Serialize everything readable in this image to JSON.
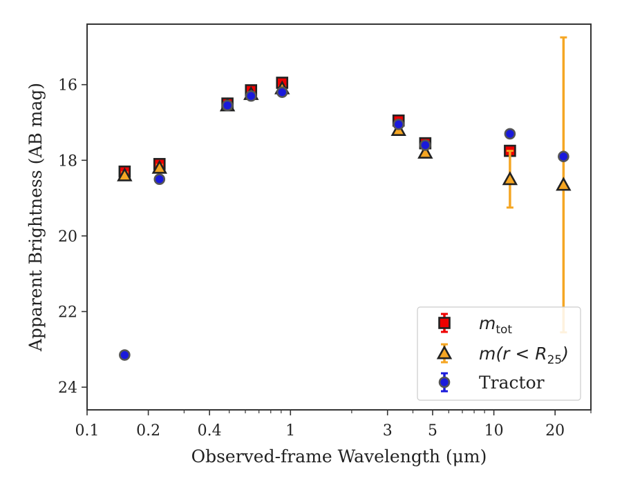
{
  "colors": {
    "mtot": "#ee0000",
    "mr25": "#f5a623",
    "mr25_err": "#f5a623",
    "tractor": "#1a1adb",
    "tractor_edge": "#555555",
    "edge": "#222222"
  },
  "chart_data": {
    "type": "scatter",
    "xlabel": "Observed-frame Wavelength (μm)",
    "ylabel": "Apparent Brightness (AB mag)",
    "xscale": "log",
    "xlim": [
      0.1,
      30
    ],
    "ylim": [
      24.6,
      14.4
    ],
    "y_inverted": true,
    "x_ticks": [
      {
        "value": 0.1,
        "label": "0.1"
      },
      {
        "value": 0.2,
        "label": "0.2"
      },
      {
        "value": 0.4,
        "label": "0.4"
      },
      {
        "value": 1,
        "label": "1"
      },
      {
        "value": 3,
        "label": "3"
      },
      {
        "value": 5,
        "label": "5"
      },
      {
        "value": 10,
        "label": "10"
      },
      {
        "value": 20,
        "label": "20"
      }
    ],
    "x_minor_ticks": [
      0.3,
      0.5,
      0.6,
      0.7,
      0.8,
      0.9,
      2,
      4,
      6,
      7,
      8,
      9,
      30
    ],
    "y_ticks": [
      {
        "value": 16,
        "label": "16"
      },
      {
        "value": 18,
        "label": "18"
      },
      {
        "value": 20,
        "label": "20"
      },
      {
        "value": 22,
        "label": "22"
      },
      {
        "value": 24,
        "label": "24"
      }
    ],
    "grid": false,
    "legend_position": "lower right",
    "legend": [
      {
        "key": "mtot",
        "main": "m",
        "sub": "tot",
        "suffix": "",
        "marker": "square"
      },
      {
        "key": "mr25",
        "main": "m(r < R",
        "sub": "25",
        "suffix": ")",
        "marker": "triangle"
      },
      {
        "key": "tractor",
        "main": "Tractor",
        "sub": "",
        "suffix": "",
        "marker": "circle"
      }
    ],
    "series": [
      {
        "name": "m_tot",
        "key": "mtot",
        "marker": "square",
        "points": [
          {
            "x": 0.153,
            "y": 18.3,
            "err": 0.08
          },
          {
            "x": 0.227,
            "y": 18.1,
            "err": 0.08
          },
          {
            "x": 0.49,
            "y": 16.5,
            "err": 0.05
          },
          {
            "x": 0.64,
            "y": 16.15,
            "err": 0.05
          },
          {
            "x": 0.91,
            "y": 15.95,
            "err": 0.05
          },
          {
            "x": 3.4,
            "y": 16.95,
            "err": 0.05
          },
          {
            "x": 4.6,
            "y": 17.55,
            "err": 0.05
          },
          {
            "x": 12.0,
            "y": 17.75,
            "err": 0.05
          }
        ]
      },
      {
        "name": "m(r < R25)",
        "key": "mr25",
        "marker": "triangle",
        "points": [
          {
            "x": 0.153,
            "y": 18.4,
            "err": 0.08
          },
          {
            "x": 0.227,
            "y": 18.2,
            "err": 0.08
          },
          {
            "x": 0.49,
            "y": 16.55,
            "err": 0.05
          },
          {
            "x": 0.64,
            "y": 16.25,
            "err": 0.05
          },
          {
            "x": 0.91,
            "y": 16.1,
            "err": 0.05
          },
          {
            "x": 3.4,
            "y": 17.2,
            "err": 0.05
          },
          {
            "x": 4.6,
            "y": 17.8,
            "err": 0.05
          },
          {
            "x": 12.0,
            "y": 18.5,
            "err": 0.75
          },
          {
            "x": 22.0,
            "y": 18.65,
            "err": 3.9
          }
        ]
      },
      {
        "name": "Tractor",
        "key": "tractor",
        "marker": "circle",
        "points": [
          {
            "x": 0.153,
            "y": 23.15,
            "err": 0.05
          },
          {
            "x": 0.227,
            "y": 18.5,
            "err": 0.05
          },
          {
            "x": 0.49,
            "y": 16.55,
            "err": 0.03
          },
          {
            "x": 0.64,
            "y": 16.3,
            "err": 0.03
          },
          {
            "x": 0.91,
            "y": 16.2,
            "err": 0.03
          },
          {
            "x": 3.4,
            "y": 17.05,
            "err": 0.03
          },
          {
            "x": 4.6,
            "y": 17.6,
            "err": 0.03
          },
          {
            "x": 12.0,
            "y": 17.3,
            "err": 0.05
          },
          {
            "x": 22.0,
            "y": 17.9,
            "err": 0.05
          }
        ]
      }
    ]
  }
}
